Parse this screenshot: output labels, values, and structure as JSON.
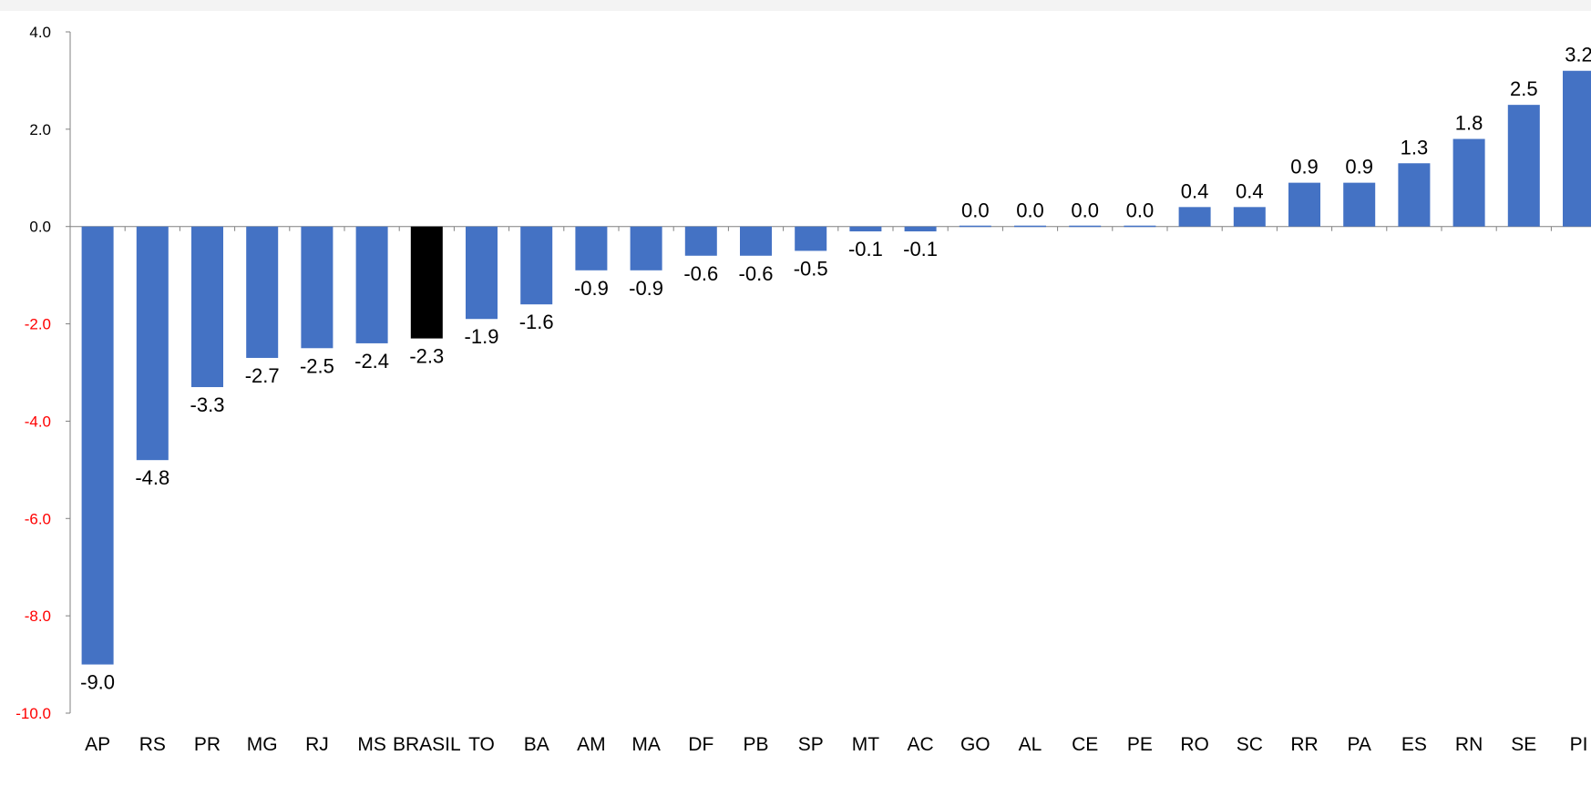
{
  "chart_data": {
    "type": "bar",
    "title": "",
    "xlabel": "",
    "ylabel": "",
    "ylim": [
      -10,
      4
    ],
    "y_ticks": [
      {
        "value": 4,
        "label": "4.0"
      },
      {
        "value": 2,
        "label": "2.0"
      },
      {
        "value": 0,
        "label": "0.0"
      },
      {
        "value": -2,
        "label": "-2.0"
      },
      {
        "value": -4,
        "label": "-4.0"
      },
      {
        "value": -6,
        "label": "-6.0"
      },
      {
        "value": -8,
        "label": "-8.0"
      },
      {
        "value": -10,
        "label": "-10.0"
      }
    ],
    "categories": [
      "AP",
      "RS",
      "PR",
      "MG",
      "RJ",
      "MS",
      "BRASIL",
      "TO",
      "BA",
      "AM",
      "MA",
      "DF",
      "PB",
      "SP",
      "MT",
      "AC",
      "GO",
      "AL",
      "CE",
      "PE",
      "RO",
      "SC",
      "RR",
      "PA",
      "ES",
      "RN",
      "SE",
      "PI"
    ],
    "values": [
      -9.0,
      -4.8,
      -3.3,
      -2.7,
      -2.5,
      -2.4,
      -2.3,
      -1.9,
      -1.6,
      -0.9,
      -0.9,
      -0.6,
      -0.6,
      -0.5,
      -0.1,
      -0.1,
      0.0,
      0.0,
      0.0,
      0.0,
      0.4,
      0.4,
      0.9,
      0.9,
      1.3,
      1.8,
      2.5,
      3.2
    ],
    "value_labels": [
      "-9.0",
      "-4.8",
      "-3.3",
      "-2.7",
      "-2.5",
      "-2.4",
      "-2.3",
      "-1.9",
      "-1.6",
      "-0.9",
      "-0.9",
      "-0.6",
      "-0.6",
      "-0.5",
      "-0.1",
      "-0.1",
      "0.0",
      "0.0",
      "0.0",
      "0.0",
      "0.4",
      "0.4",
      "0.9",
      "0.9",
      "1.3",
      "1.8",
      "2.5",
      "3.2"
    ],
    "highlight_category": "BRASIL",
    "grid": false,
    "legend": "none",
    "colors": {
      "bar": "#4472c4",
      "highlight": "#000000",
      "negative_tick_label": "#ff0000",
      "positive_tick_label": "#000000",
      "axis": "#808080"
    }
  }
}
